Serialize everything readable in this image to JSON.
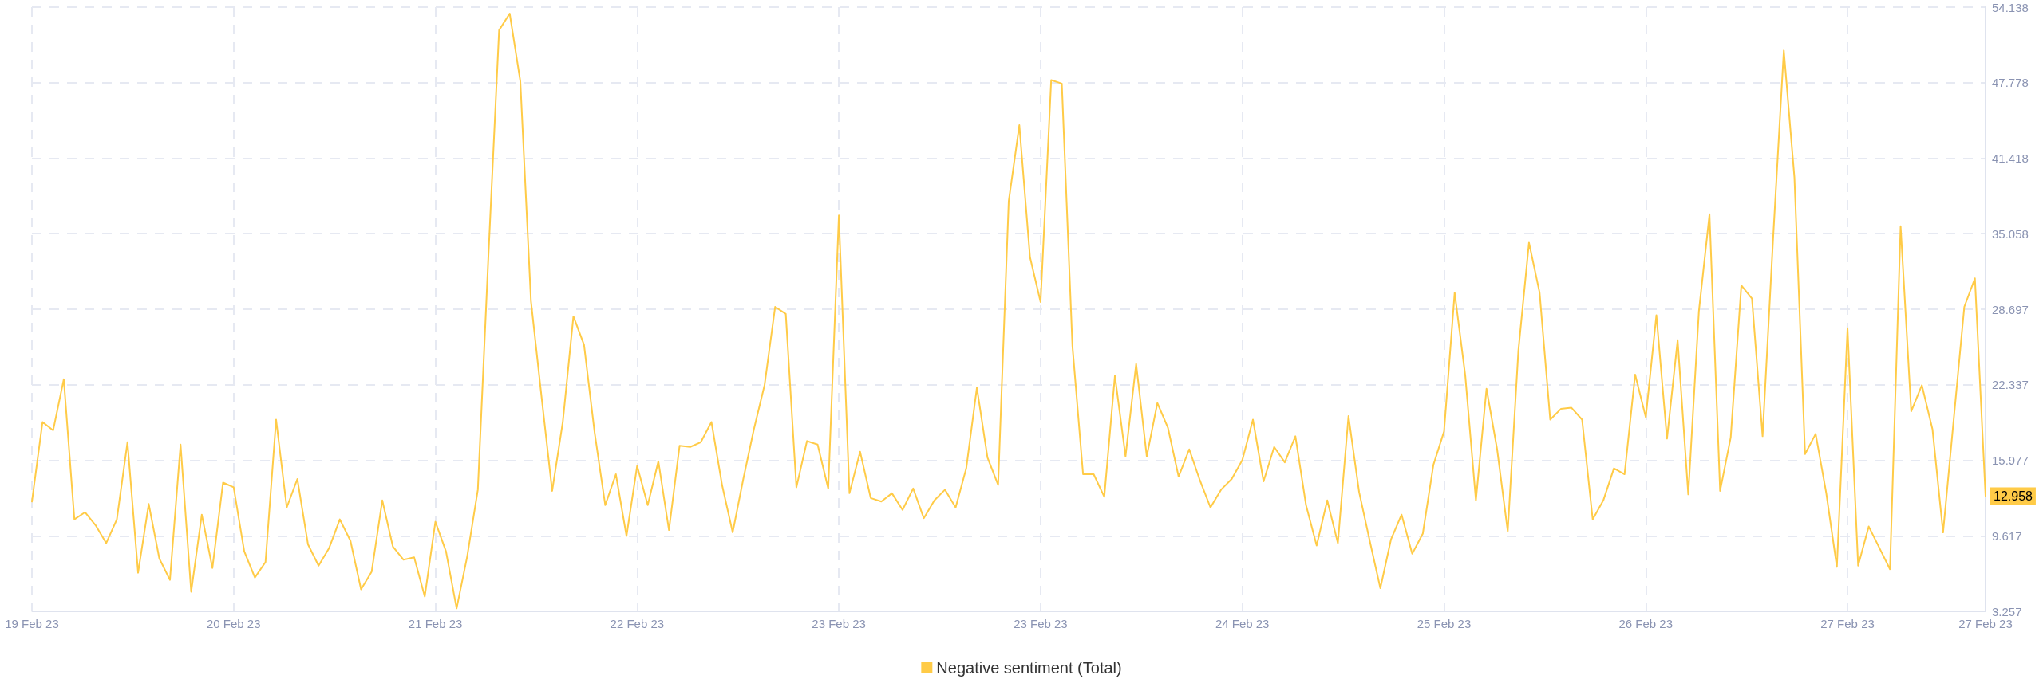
{
  "chart_data": {
    "type": "line",
    "categories": [
      "19 Feb 23",
      null,
      null,
      null,
      null,
      null,
      null,
      null,
      null,
      null,
      null,
      null,
      null,
      null,
      null,
      null,
      null,
      null,
      null,
      "20 Feb 23",
      null,
      null,
      null,
      null,
      null,
      null,
      null,
      null,
      null,
      null,
      null,
      null,
      null,
      null,
      null,
      null,
      null,
      null,
      "21 Feb 23",
      null,
      null,
      null,
      null,
      null,
      null,
      null,
      null,
      null,
      null,
      null,
      null,
      null,
      null,
      null,
      null,
      null,
      null,
      "22 Feb 23",
      null,
      null,
      null,
      null,
      null,
      null,
      null,
      null,
      null,
      null,
      null,
      null,
      null,
      null,
      null,
      null,
      null,
      null,
      "23 Feb 23",
      null,
      null,
      null,
      null,
      null,
      null,
      null,
      null,
      null,
      null,
      null,
      null,
      null,
      null,
      null,
      null,
      null,
      null,
      "23 Feb 23",
      null,
      null,
      null,
      null,
      null,
      null,
      null,
      null,
      null,
      null,
      null,
      null,
      null,
      null,
      null,
      null,
      null,
      null,
      "24 Feb 23",
      null,
      null,
      null,
      null,
      null,
      null,
      null,
      null,
      null,
      null,
      null,
      null,
      null,
      null,
      null,
      null,
      null,
      null,
      "25 Feb 23",
      null,
      null,
      null,
      null,
      null,
      null,
      null,
      null,
      null,
      null,
      null,
      null,
      null,
      null,
      null,
      null,
      null,
      null,
      "26 Feb 23",
      null,
      null,
      null,
      null,
      null,
      null,
      null,
      null,
      null,
      null,
      null,
      null,
      null,
      null,
      null,
      null,
      null,
      null,
      "27 Feb 23",
      null,
      null,
      null,
      null,
      null,
      null,
      null,
      null,
      null,
      null,
      null,
      null,
      "27 Feb 23"
    ],
    "series": [
      {
        "name": "Negative sentiment (Total)",
        "color": "#ffcb47",
        "values": [
          12.5,
          19.2,
          18.5,
          22.8,
          11.0,
          11.6,
          10.5,
          9.0,
          11.0,
          17.5,
          6.5,
          12.3,
          7.7,
          5.9,
          17.3,
          4.9,
          11.4,
          6.9,
          14.1,
          13.7,
          8.3,
          6.1,
          7.4,
          19.4,
          12.0,
          14.4,
          8.9,
          7.1,
          8.6,
          11.0,
          9.2,
          5.1,
          6.6,
          12.6,
          8.7,
          7.6,
          7.8,
          4.5,
          10.8,
          8.3,
          3.5,
          7.9,
          13.5,
          33.3,
          52.2,
          53.6,
          47.9,
          29.4,
          21.3,
          13.4,
          19.2,
          28.1,
          25.7,
          18.3,
          12.2,
          14.8,
          9.6,
          15.5,
          12.2,
          15.9,
          10.1,
          17.2,
          17.1,
          17.5,
          19.2,
          13.9,
          9.9,
          14.4,
          18.6,
          22.3,
          28.9,
          28.3,
          13.7,
          17.6,
          17.3,
          13.6,
          36.6,
          13.2,
          16.7,
          12.8,
          12.5,
          13.2,
          11.8,
          13.6,
          11.1,
          12.6,
          13.5,
          12.0,
          15.3,
          22.1,
          16.2,
          13.9,
          37.8,
          44.2,
          33.1,
          29.3,
          48.0,
          47.7,
          25.6,
          14.8,
          14.8,
          12.9,
          23.1,
          16.3,
          24.1,
          16.3,
          20.8,
          18.7,
          14.6,
          16.9,
          14.3,
          12.0,
          13.5,
          14.4,
          16.0,
          19.4,
          14.2,
          17.1,
          15.8,
          18.0,
          12.2,
          8.8,
          12.6,
          9.0,
          19.7,
          13.3,
          9.2,
          5.2,
          9.3,
          11.4,
          8.1,
          9.8,
          15.6,
          18.4,
          30.1,
          23.1,
          12.6,
          22.0,
          16.9,
          10.0,
          25.2,
          34.3,
          30.1,
          19.4,
          20.3,
          20.4,
          19.4,
          11.0,
          12.6,
          15.3,
          14.8,
          23.2,
          19.6,
          28.2,
          17.8,
          26.1,
          13.1,
          28.5,
          36.7,
          13.4,
          17.9,
          30.7,
          29.6,
          18.0,
          34.8,
          50.5,
          39.8,
          16.5,
          18.2,
          13.2,
          7.0,
          27.1,
          7.1,
          10.4,
          8.6,
          6.8,
          35.7,
          20.1,
          22.3,
          18.6,
          9.9,
          19.4,
          28.9,
          31.3,
          12.958
        ]
      }
    ],
    "ylim": [
      3.257,
      54.138
    ],
    "yticks": [
      3.257,
      9.617,
      15.977,
      22.337,
      28.697,
      35.058,
      41.418,
      47.778,
      54.138
    ],
    "annotations": [
      "12.958"
    ],
    "grid": true,
    "legend": "bottom",
    "marker": "none",
    "line_style": "solid"
  }
}
